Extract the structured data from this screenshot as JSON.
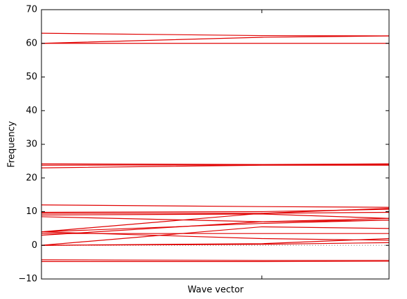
{
  "chart_data": {
    "type": "line",
    "x_label": "Wave vector",
    "y_label": "Frequency",
    "x": [
      0,
      0.634,
      1
    ],
    "xlim": [
      0,
      1
    ],
    "xticks": [
      0.634
    ],
    "ylim": [
      -10,
      70
    ],
    "yticks": [
      {
        "value": -10,
        "label": "−10"
      },
      0,
      10,
      20,
      30,
      40,
      50,
      60,
      70
    ],
    "zero_line": true,
    "series": [
      {
        "color": "#e00000",
        "values": [
          63,
          62.3,
          62.2
        ]
      },
      {
        "color": "#e00000",
        "values": [
          60,
          61.8,
          62.2
        ]
      },
      {
        "color": "#e00000",
        "values": [
          60,
          60,
          60
        ]
      },
      {
        "color": "#e00000",
        "values": [
          24.2,
          24,
          24.2
        ]
      },
      {
        "color": "#e00000",
        "values": [
          23.8,
          23.9,
          24
        ]
      },
      {
        "color": "#e00000",
        "values": [
          23,
          23.8,
          23.8
        ]
      },
      {
        "color": "#e00000",
        "values": [
          12,
          11.5,
          11.3
        ]
      },
      {
        "color": "#e00000",
        "values": [
          9.8,
          10,
          10.7
        ]
      },
      {
        "color": "#e00000",
        "values": [
          9.5,
          9.5,
          9.8
        ]
      },
      {
        "color": "#e00000",
        "values": [
          9,
          9.3,
          8
        ]
      },
      {
        "color": "#e00000",
        "values": [
          8.5,
          7,
          7.5
        ]
      },
      {
        "color": "#e00000",
        "values": [
          4,
          9.5,
          11
        ]
      },
      {
        "color": "#e00000",
        "values": [
          4,
          6.5,
          7.5
        ]
      },
      {
        "color": "#e00000",
        "values": [
          3,
          7,
          8
        ]
      },
      {
        "color": "#e00000",
        "values": [
          4,
          2,
          1.5
        ]
      },
      {
        "color": "#e00000",
        "values": [
          3.5,
          3.5,
          3.5
        ]
      },
      {
        "color": "#e00000",
        "values": [
          0,
          5.5,
          5
        ]
      },
      {
        "color": "#e00000",
        "values": [
          0,
          0.5,
          2
        ]
      },
      {
        "color": "#e00000",
        "values": [
          0,
          0.3,
          0.8
        ]
      },
      {
        "color": "#e00000",
        "values": [
          -4.3,
          -4.5,
          -4.5
        ]
      },
      {
        "color": "#e00000",
        "values": [
          -4.8,
          -4.8,
          -4.7
        ]
      }
    ]
  }
}
